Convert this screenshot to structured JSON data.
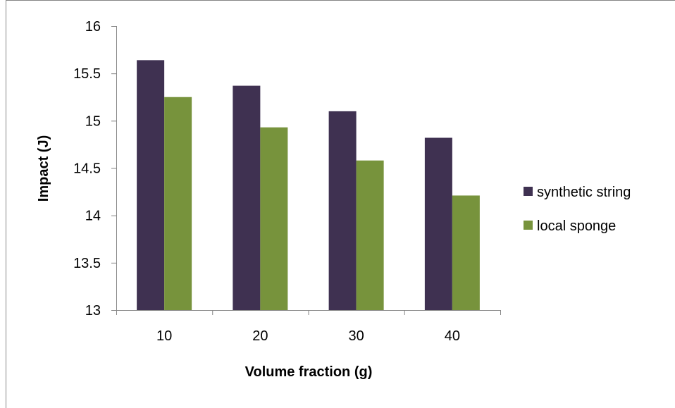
{
  "chart_data": {
    "type": "bar",
    "categories": [
      "10",
      "20",
      "30",
      "40"
    ],
    "series": [
      {
        "name": "synthetic string",
        "color": "#3f3151",
        "values": [
          15.64,
          15.37,
          15.1,
          14.82
        ]
      },
      {
        "name": "local sponge",
        "color": "#77933c",
        "values": [
          15.25,
          14.93,
          14.58,
          14.21
        ]
      }
    ],
    "title": "",
    "xlabel": "Volume fraction (g)",
    "ylabel": "Impact (J)",
    "ylim": [
      13,
      16
    ],
    "yticks": [
      "13",
      "13.5",
      "14",
      "14.5",
      "15",
      "15.5",
      "16"
    ],
    "grid": false,
    "legend_position": "right"
  }
}
